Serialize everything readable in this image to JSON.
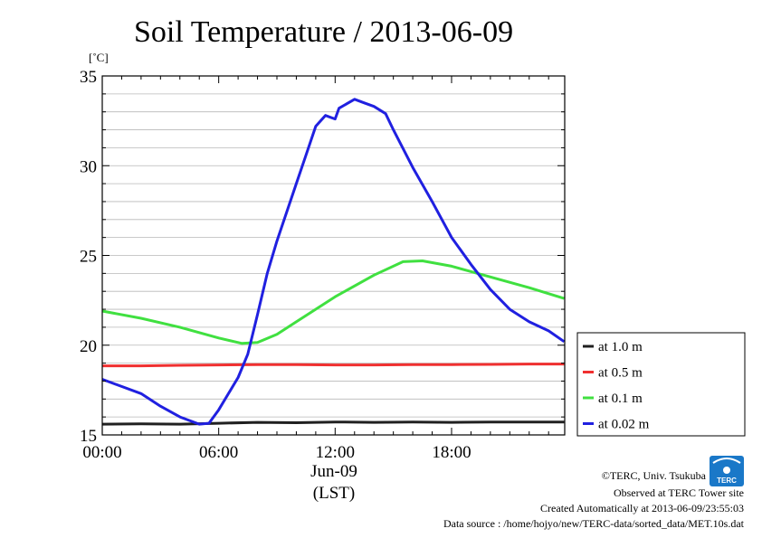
{
  "chart_data": {
    "type": "line",
    "title": "Soil Temperature / 2013-06-09",
    "ylabel_unit": "[˚C]",
    "ylim": [
      15,
      35
    ],
    "yticks": [
      "15",
      "20",
      "25",
      "30",
      "35"
    ],
    "xlim": [
      0,
      23.83
    ],
    "xticks": [
      {
        "hour": 0,
        "label": "00:00"
      },
      {
        "hour": 6,
        "label": "06:00"
      },
      {
        "hour": 12,
        "label": "12:00"
      },
      {
        "hour": 18,
        "label": "18:00"
      }
    ],
    "date_label": "Jun-09",
    "xlabel": "(LST)",
    "grid": "horizontal",
    "legend_position": "right",
    "series": [
      {
        "name": "at 1.0 m",
        "color": "#202020",
        "points": [
          [
            0,
            15.6
          ],
          [
            2,
            15.62
          ],
          [
            4,
            15.6
          ],
          [
            6,
            15.65
          ],
          [
            8,
            15.7
          ],
          [
            10,
            15.68
          ],
          [
            12,
            15.72
          ],
          [
            14,
            15.7
          ],
          [
            16,
            15.72
          ],
          [
            18,
            15.7
          ],
          [
            20,
            15.72
          ],
          [
            22,
            15.72
          ],
          [
            23.8,
            15.72
          ]
        ]
      },
      {
        "name": "at 0.5 m",
        "color": "#f03030",
        "points": [
          [
            0,
            18.85
          ],
          [
            2,
            18.85
          ],
          [
            4,
            18.88
          ],
          [
            6,
            18.9
          ],
          [
            8,
            18.92
          ],
          [
            10,
            18.92
          ],
          [
            12,
            18.9
          ],
          [
            14,
            18.9
          ],
          [
            16,
            18.92
          ],
          [
            18,
            18.92
          ],
          [
            20,
            18.93
          ],
          [
            22,
            18.95
          ],
          [
            23.8,
            18.95
          ]
        ]
      },
      {
        "name": "at 0.1 m",
        "color": "#40e040",
        "points": [
          [
            0,
            21.9
          ],
          [
            2,
            21.5
          ],
          [
            4,
            21.0
          ],
          [
            6,
            20.4
          ],
          [
            7.2,
            20.1
          ],
          [
            8,
            20.15
          ],
          [
            9,
            20.6
          ],
          [
            10,
            21.3
          ],
          [
            12,
            22.7
          ],
          [
            14,
            23.9
          ],
          [
            15.5,
            24.65
          ],
          [
            16.5,
            24.7
          ],
          [
            18,
            24.4
          ],
          [
            20,
            23.8
          ],
          [
            22,
            23.2
          ],
          [
            23.8,
            22.6
          ]
        ]
      },
      {
        "name": "at 0.02 m",
        "color": "#2020e0",
        "points": [
          [
            0,
            18.1
          ],
          [
            1,
            17.7
          ],
          [
            2,
            17.3
          ],
          [
            3,
            16.6
          ],
          [
            4,
            16.0
          ],
          [
            5,
            15.6
          ],
          [
            5.5,
            15.65
          ],
          [
            6,
            16.4
          ],
          [
            7,
            18.2
          ],
          [
            7.5,
            19.5
          ],
          [
            8,
            21.7
          ],
          [
            8.5,
            24.0
          ],
          [
            9,
            25.8
          ],
          [
            10,
            29.0
          ],
          [
            10.5,
            30.6
          ],
          [
            11,
            32.2
          ],
          [
            11.5,
            32.8
          ],
          [
            12,
            32.6
          ],
          [
            12.2,
            33.2
          ],
          [
            13,
            33.7
          ],
          [
            13.5,
            33.5
          ],
          [
            14,
            33.3
          ],
          [
            14.6,
            32.9
          ],
          [
            15,
            32.0
          ],
          [
            16,
            29.9
          ],
          [
            17,
            28.0
          ],
          [
            18,
            26.0
          ],
          [
            19,
            24.5
          ],
          [
            20,
            23.1
          ],
          [
            21,
            22.0
          ],
          [
            22,
            21.3
          ],
          [
            23,
            20.8
          ],
          [
            23.8,
            20.2
          ]
        ]
      }
    ]
  },
  "credits": {
    "copyright": "©TERC, Univ. Tsukuba",
    "observed": "Observed at TERC Tower site",
    "created": "Created Automatically at 2013-06-09/23:55:03",
    "source": "Data source : /home/hojyo/new/TERC-data/sorted_data/MET.10s.dat"
  },
  "logo": {
    "text": "TERC",
    "color": "#1a78c8"
  }
}
